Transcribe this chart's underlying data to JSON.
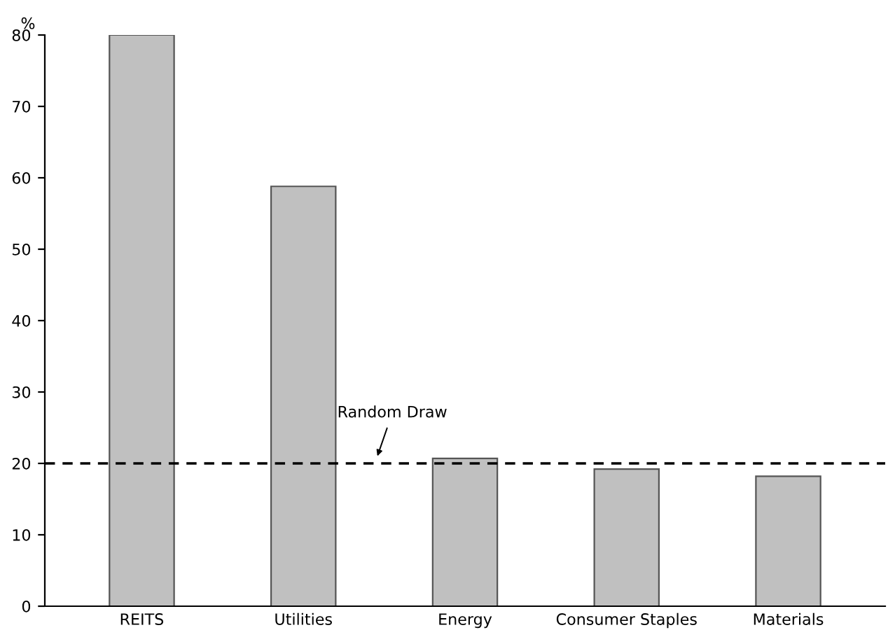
{
  "chart_data": {
    "type": "bar",
    "ylabel": "%",
    "categories": [
      "REITS",
      "Utilities",
      "Energy",
      "Consumer Staples",
      "Materials"
    ],
    "values": [
      80,
      58.8,
      20.7,
      19.2,
      18.2
    ],
    "color": "#c0c0c0",
    "ylim": [
      0,
      80
    ],
    "yticks": [
      0,
      10,
      20,
      30,
      40,
      50,
      60,
      70,
      80
    ],
    "grid": false,
    "ref_lines": [
      {
        "axis": "y",
        "value": 20,
        "label": "Random Draw",
        "color": "#000000",
        "line_style": "dashed"
      }
    ]
  }
}
